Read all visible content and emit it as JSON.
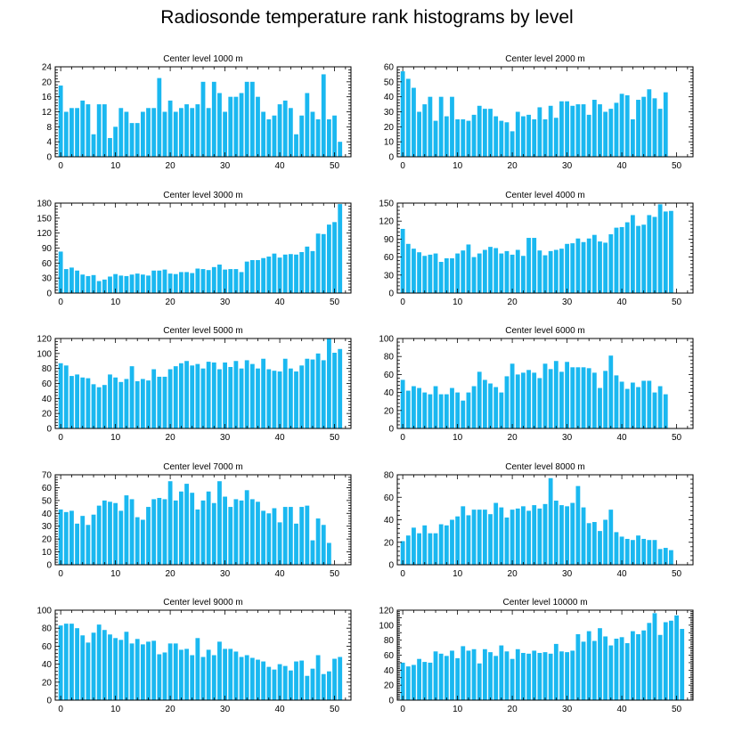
{
  "title": "Radiosonde temperature rank histograms by level",
  "colors": {
    "bar": "#1ab8f0",
    "axis": "#000000",
    "background": "#ffffff"
  },
  "chart_data": [
    {
      "type": "bar",
      "title": "Center level 1000 m",
      "xlim": [
        -1,
        53
      ],
      "xticks": [
        0,
        10,
        20,
        30,
        40,
        50
      ],
      "ylim": [
        0,
        24
      ],
      "yticks": [
        0,
        4,
        8,
        12,
        16,
        20,
        24
      ],
      "values": [
        19,
        12,
        13,
        13,
        15,
        14,
        6,
        14,
        14,
        5,
        8,
        13,
        12,
        9,
        9,
        12,
        13,
        13,
        21,
        12,
        15,
        12,
        13,
        14,
        13,
        14,
        20,
        13,
        20,
        17,
        12,
        16,
        16,
        17,
        20,
        20,
        16,
        12,
        10,
        11,
        14,
        15,
        13,
        6,
        11,
        17,
        12,
        10,
        22,
        10,
        11,
        4
      ]
    },
    {
      "type": "bar",
      "title": "Center level 2000 m",
      "xlim": [
        -1,
        53
      ],
      "xticks": [
        0,
        10,
        20,
        30,
        40,
        50
      ],
      "ylim": [
        0,
        60
      ],
      "yticks": [
        0,
        10,
        20,
        30,
        40,
        50,
        60
      ],
      "values": [
        57,
        52,
        46,
        30,
        35,
        40,
        24,
        40,
        27,
        40,
        25,
        25,
        24,
        28,
        34,
        32,
        32,
        27,
        24,
        23,
        17,
        30,
        27,
        28,
        25,
        33,
        25,
        34,
        26,
        37,
        37,
        34,
        35,
        35,
        28,
        38,
        35,
        30,
        32,
        36,
        42,
        41,
        25,
        38,
        40,
        45,
        39,
        32,
        43
      ]
    },
    {
      "type": "bar",
      "title": "Center level 3000 m",
      "xlim": [
        -1,
        53
      ],
      "xticks": [
        0,
        10,
        20,
        30,
        40,
        50
      ],
      "ylim": [
        0,
        180
      ],
      "yticks": [
        0,
        30,
        60,
        90,
        120,
        150,
        180
      ],
      "values": [
        83,
        48,
        51,
        45,
        37,
        34,
        36,
        24,
        27,
        33,
        38,
        35,
        34,
        37,
        39,
        37,
        35,
        45,
        45,
        47,
        39,
        38,
        42,
        42,
        40,
        49,
        48,
        46,
        52,
        57,
        47,
        48,
        48,
        42,
        63,
        66,
        66,
        70,
        73,
        79,
        71,
        77,
        78,
        77,
        82,
        93,
        84,
        119,
        118,
        137,
        142,
        178
      ]
    },
    {
      "type": "bar",
      "title": "Center level 4000 m",
      "xlim": [
        -1,
        53
      ],
      "xticks": [
        0,
        10,
        20,
        30,
        40,
        50
      ],
      "ylim": [
        0,
        150
      ],
      "yticks": [
        0,
        30,
        60,
        90,
        120,
        150
      ],
      "values": [
        107,
        82,
        74,
        68,
        62,
        64,
        66,
        52,
        58,
        58,
        66,
        71,
        81,
        60,
        66,
        72,
        77,
        75,
        66,
        70,
        64,
        72,
        62,
        92,
        92,
        71,
        63,
        70,
        72,
        74,
        82,
        83,
        91,
        85,
        91,
        97,
        86,
        84,
        98,
        109,
        110,
        118,
        130,
        112,
        114,
        130,
        127,
        148,
        136,
        137
      ]
    },
    {
      "type": "bar",
      "title": "Center level 5000 m",
      "xlim": [
        -1,
        53
      ],
      "xticks": [
        0,
        10,
        20,
        30,
        40,
        50
      ],
      "ylim": [
        0,
        120
      ],
      "yticks": [
        0,
        20,
        40,
        60,
        80,
        100,
        120
      ],
      "values": [
        87,
        84,
        70,
        72,
        68,
        67,
        59,
        55,
        58,
        72,
        68,
        62,
        66,
        83,
        63,
        66,
        64,
        79,
        69,
        69,
        79,
        83,
        87,
        90,
        84,
        86,
        80,
        89,
        88,
        79,
        88,
        82,
        90,
        80,
        91,
        86,
        80,
        93,
        79,
        77,
        76,
        93,
        80,
        76,
        84,
        93,
        92,
        100,
        91,
        120,
        101,
        106
      ]
    },
    {
      "type": "bar",
      "title": "Center level 6000 m",
      "xlim": [
        -1,
        53
      ],
      "xticks": [
        0,
        10,
        20,
        30,
        40,
        50
      ],
      "ylim": [
        0,
        100
      ],
      "yticks": [
        0,
        20,
        40,
        60,
        80,
        100
      ],
      "values": [
        54,
        42,
        47,
        45,
        40,
        38,
        47,
        38,
        38,
        45,
        40,
        31,
        40,
        47,
        63,
        54,
        50,
        46,
        40,
        58,
        72,
        60,
        62,
        65,
        62,
        56,
        72,
        66,
        75,
        63,
        74,
        68,
        68,
        68,
        67,
        62,
        45,
        64,
        81,
        59,
        52,
        44,
        51,
        46,
        53,
        53,
        40,
        47,
        38
      ]
    },
    {
      "type": "bar",
      "title": "Center level 7000 m",
      "xlim": [
        -1,
        53
      ],
      "xticks": [
        0,
        10,
        20,
        30,
        40,
        50
      ],
      "ylim": [
        0,
        70
      ],
      "yticks": [
        0,
        10,
        20,
        30,
        40,
        50,
        60,
        70
      ],
      "values": [
        43,
        41,
        42,
        32,
        38,
        31,
        39,
        46,
        50,
        49,
        48,
        42,
        54,
        51,
        37,
        35,
        45,
        51,
        52,
        51,
        65,
        50,
        57,
        63,
        56,
        43,
        50,
        57,
        48,
        65,
        53,
        45,
        51,
        50,
        58,
        51,
        49,
        42,
        40,
        44,
        33,
        45,
        45,
        32,
        45,
        46,
        19,
        36,
        31,
        17
      ]
    },
    {
      "type": "bar",
      "title": "Center level 8000 m",
      "xlim": [
        -1,
        53
      ],
      "xticks": [
        0,
        10,
        20,
        30,
        40,
        50
      ],
      "ylim": [
        0,
        80
      ],
      "yticks": [
        0,
        20,
        40,
        60,
        80
      ],
      "values": [
        21,
        26,
        33,
        28,
        35,
        28,
        28,
        36,
        35,
        40,
        43,
        52,
        44,
        49,
        49,
        49,
        45,
        55,
        51,
        42,
        49,
        50,
        52,
        48,
        53,
        50,
        54,
        77,
        57,
        53,
        52,
        55,
        70,
        51,
        37,
        38,
        30,
        40,
        49,
        29,
        25,
        23,
        22,
        26,
        23,
        22,
        22,
        14,
        15,
        13
      ]
    },
    {
      "type": "bar",
      "title": "Center level 9000 m",
      "xlim": [
        -1,
        53
      ],
      "xticks": [
        0,
        10,
        20,
        30,
        40,
        50
      ],
      "ylim": [
        0,
        100
      ],
      "yticks": [
        0,
        20,
        40,
        60,
        80,
        100
      ],
      "values": [
        83,
        85,
        85,
        80,
        72,
        64,
        75,
        84,
        78,
        73,
        69,
        67,
        76,
        63,
        68,
        62,
        65,
        66,
        51,
        53,
        63,
        63,
        56,
        57,
        50,
        69,
        48,
        56,
        50,
        65,
        57,
        57,
        54,
        48,
        50,
        47,
        45,
        43,
        37,
        34,
        40,
        38,
        33,
        43,
        44,
        27,
        35,
        50,
        29,
        32,
        46,
        48
      ]
    },
    {
      "type": "bar",
      "title": "Center level 10000 m",
      "xlim": [
        -1,
        53
      ],
      "xticks": [
        0,
        10,
        20,
        30,
        40,
        50
      ],
      "ylim": [
        0,
        120
      ],
      "yticks": [
        0,
        10,
        20,
        30,
        40,
        50,
        60,
        70,
        80,
        90,
        100,
        110,
        120
      ],
      "ylabel_ticks": [
        0,
        20,
        40,
        60,
        80,
        100,
        120
      ],
      "values": [
        50,
        45,
        47,
        55,
        51,
        50,
        65,
        62,
        59,
        66,
        56,
        72,
        66,
        68,
        49,
        68,
        64,
        59,
        73,
        65,
        55,
        68,
        63,
        62,
        66,
        63,
        64,
        62,
        75,
        65,
        64,
        66,
        88,
        78,
        92,
        79,
        96,
        85,
        73,
        82,
        84,
        76,
        92,
        88,
        93,
        103,
        116,
        87,
        104,
        106,
        113,
        95
      ]
    }
  ]
}
